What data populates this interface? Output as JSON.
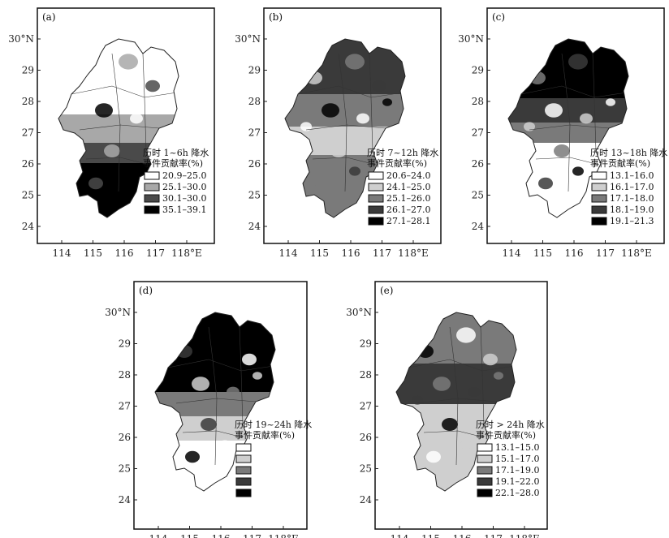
{
  "panels": [
    {
      "label": "(a)",
      "legend_title": [
        "历时 1~6h 降水",
        "事件贡献率(%)"
      ],
      "legend": [
        "20.9–25.0",
        "25.1–30.0",
        "30.1–30.0",
        "35.1–39.1"
      ],
      "colors": [
        "#ffffff",
        "#a8a8a8",
        "#4a4a4a",
        "#000000"
      ]
    },
    {
      "label": "(b)",
      "legend_title": [
        "历时 7~12h 降水",
        "事件贡献率(%)"
      ],
      "legend": [
        "20.6–24.0",
        "24.1–25.0",
        "25.1–26.0",
        "26.1–27.0",
        "27.1–28.1"
      ],
      "colors": [
        "#ffffff",
        "#cfcfcf",
        "#7a7a7a",
        "#3a3a3a",
        "#000000"
      ]
    },
    {
      "label": "(c)",
      "legend_title": [
        "历时 13~18h 降水",
        "事件贡献率(%)"
      ],
      "legend": [
        "13.1–16.0",
        "16.1–17.0",
        "17.1–18.0",
        "18.1–19.0",
        "19.1–21.3"
      ],
      "colors": [
        "#ffffff",
        "#cfcfcf",
        "#7a7a7a",
        "#3a3a3a",
        "#000000"
      ]
    },
    {
      "label": "(d)",
      "legend_title": [
        "历时 19~24h 降水",
        "事件贡献率(%)"
      ],
      "legend": [
        "",
        "",
        "",
        "",
        ""
      ],
      "colors": [
        "#ffffff",
        "#cfcfcf",
        "#7a7a7a",
        "#3a3a3a",
        "#000000"
      ]
    },
    {
      "label": "(e)",
      "legend_title": [
        "历时 > 24h 降水",
        "事件贡献率(%)"
      ],
      "legend": [
        "13.1–15.0",
        "15.1–17.0",
        "17.1–19.0",
        "19.1–22.0",
        "22.1–28.0"
      ],
      "colors": [
        "#ffffff",
        "#cfcfcf",
        "#7a7a7a",
        "#3a3a3a",
        "#000000"
      ]
    }
  ],
  "axes": {
    "x_ticks": [
      "114",
      "115",
      "116",
      "117",
      "118°E"
    ],
    "y_ticks": [
      "30°N",
      "29",
      "28",
      "27",
      "26",
      "25",
      "24"
    ]
  }
}
